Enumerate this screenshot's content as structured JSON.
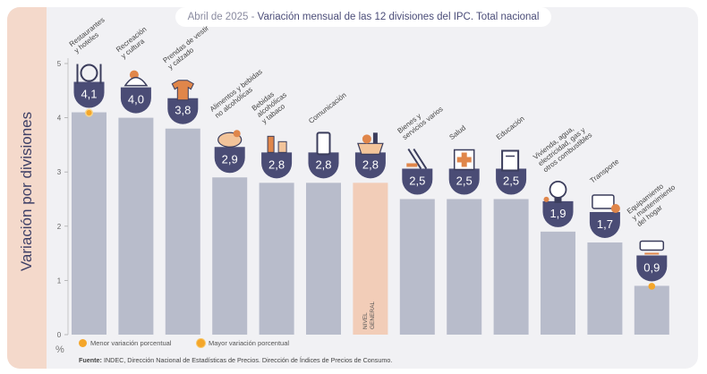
{
  "side_label": "Variación por divisiones",
  "title": {
    "date": "Abril de 2025",
    "sep": " - ",
    "main": "Variación mensual de las 12 divisiones del IPC. Total nacional"
  },
  "legend": {
    "min": "Menor variación porcentual",
    "max": "Mayor variación porcentual"
  },
  "unit": "%",
  "source": {
    "label": "Fuente:",
    "text": "INDEC, Dirección Nacional de Estadísticas de Precios. Dirección de Índices de Precios de Consumo."
  },
  "colors": {
    "bar": "#b8bccb",
    "highlight": "#f2cdb8",
    "badge": "#4a4c75",
    "marker": "#f4a62a"
  },
  "chart_data": {
    "type": "bar",
    "title": "Variación mensual de las 12 divisiones del IPC. Total nacional",
    "ylabel": "Variación por divisiones",
    "ylim": [
      0,
      5
    ],
    "yticks": [
      "0",
      "1",
      "2",
      "3",
      "4",
      "5"
    ],
    "categories": [
      {
        "lines": [
          "Restaurantes",
          "y hoteles"
        ],
        "value": 4.1,
        "label": "4,1",
        "icon": "restaurant-icon",
        "marker": "max"
      },
      {
        "lines": [
          "Recreación",
          "y cultura"
        ],
        "value": 4.0,
        "label": "4,0",
        "icon": "recreation-icon"
      },
      {
        "lines": [
          "Prendas de vestir",
          "y calzado"
        ],
        "value": 3.8,
        "label": "3,8",
        "icon": "clothing-icon"
      },
      {
        "lines": [
          "Alimentos y bebidas",
          "no alcohólicas"
        ],
        "value": 2.9,
        "label": "2,9",
        "icon": "food-icon"
      },
      {
        "lines": [
          "Bebidas",
          "alcohólicas",
          "y tabaco"
        ],
        "value": 2.8,
        "label": "2,8",
        "icon": "beverages-icon"
      },
      {
        "lines": [
          "Comunicación"
        ],
        "value": 2.8,
        "label": "2,8",
        "icon": "phone-icon"
      },
      {
        "lines": [],
        "value": 2.8,
        "label": "2,8",
        "icon": "basket-icon",
        "highlight": true,
        "bar_text": [
          "NIVEL",
          "GENERAL"
        ]
      },
      {
        "lines": [
          "Bienes y",
          "servicios varios"
        ],
        "value": 2.5,
        "label": "2,5",
        "icon": "comb-icon"
      },
      {
        "lines": [
          "Salud"
        ],
        "value": 2.5,
        "label": "2,5",
        "icon": "health-icon"
      },
      {
        "lines": [
          "Educación"
        ],
        "value": 2.5,
        "label": "2,5",
        "icon": "book-icon"
      },
      {
        "lines": [
          "Vivienda, agua,",
          "electricidad, gas y",
          "otros combustibles"
        ],
        "value": 1.9,
        "label": "1,9",
        "icon": "lightbulb-icon"
      },
      {
        "lines": [
          "Transporte"
        ],
        "value": 1.7,
        "label": "1,7",
        "icon": "transport-card-icon"
      },
      {
        "lines": [
          "Equipamiento",
          "y mantenimiento",
          "del hogar"
        ],
        "value": 0.9,
        "label": "0,9",
        "icon": "air-conditioner-icon",
        "marker": "min"
      }
    ]
  }
}
